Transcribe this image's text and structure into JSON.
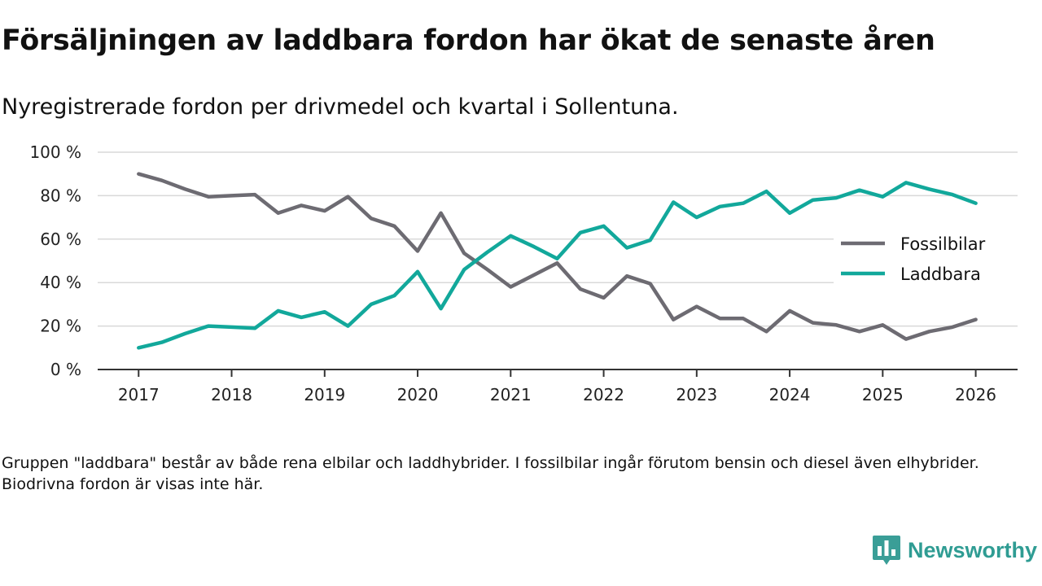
{
  "header": {
    "title": "Försäljningen av laddbara fordon har ökat de senaste åren",
    "subtitle": "Nyregistrerade fordon per drivmedel och kvartal i Sollentuna."
  },
  "footnote": "Gruppen \"laddbara\" består av både rena elbilar och laddhybrider. I fossilbilar ingår förutom bensin och diesel även elhybrider. Biodrivna fordon är visas inte här.",
  "brand": {
    "name": "Newsworthy",
    "icon": "newsworthy-logo-icon",
    "color": "#3a9e97"
  },
  "chart_data": {
    "type": "line",
    "title": "",
    "xlabel": "",
    "ylabel": "",
    "x": [
      2017.0,
      2017.25,
      2017.5,
      2017.75,
      2018.0,
      2018.25,
      2018.5,
      2018.75,
      2019.0,
      2019.25,
      2019.5,
      2019.75,
      2020.0,
      2020.25,
      2020.5,
      2020.75,
      2021.0,
      2021.25,
      2021.5,
      2021.75,
      2022.0,
      2022.25,
      2022.5,
      2022.75,
      2023.0,
      2023.25,
      2023.5,
      2023.75,
      2024.0,
      2024.25,
      2024.5,
      2024.75,
      2025.0,
      2025.25,
      2025.5,
      2025.75,
      2026.0
    ],
    "xlim": [
      2016.56,
      2026.45
    ],
    "ylim": [
      0,
      100
    ],
    "x_ticks": [
      2017,
      2018,
      2019,
      2020,
      2021,
      2022,
      2023,
      2024,
      2025,
      2026
    ],
    "x_tick_labels": [
      "2017",
      "2018",
      "2019",
      "2020",
      "2021",
      "2022",
      "2023",
      "2024",
      "2025",
      "2026"
    ],
    "y_ticks": [
      0,
      20,
      40,
      60,
      80,
      100
    ],
    "y_tick_labels": [
      "0 %",
      "20 %",
      "40 %",
      "60 %",
      "80 %",
      "100 %"
    ],
    "grid": true,
    "legend_position": "right",
    "series": [
      {
        "name": "Fossilbilar",
        "color": "#6d6b72",
        "values": [
          90,
          87,
          83,
          79.5,
          80,
          80.5,
          72,
          75.5,
          73,
          79.5,
          69.5,
          66,
          54.5,
          72,
          53.5,
          46,
          38,
          43.5,
          49,
          37,
          33,
          43,
          39.5,
          23,
          29,
          23.5,
          23.5,
          17.5,
          27,
          21.5,
          20.5,
          17.5,
          20.5,
          14,
          17.5,
          19.5,
          23
        ]
      },
      {
        "name": "Laddbara",
        "color": "#12a89b",
        "values": [
          10,
          12.5,
          16.5,
          20,
          19.5,
          19,
          27,
          24,
          26.5,
          20,
          30,
          34,
          45,
          28,
          46,
          54,
          61.5,
          56.5,
          51,
          63,
          66,
          56,
          59.5,
          77,
          70,
          75,
          76.5,
          82,
          72,
          78,
          79,
          82.5,
          79.5,
          86,
          83,
          80.5,
          76.5
        ]
      }
    ]
  }
}
